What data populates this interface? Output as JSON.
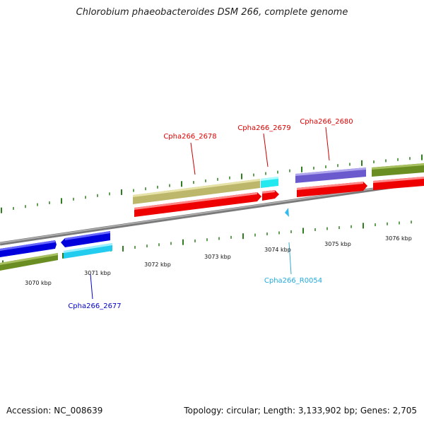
{
  "title": "Chlorobium phaeobacteroides DSM 266, complete genome",
  "genes": {
    "g2677": "Cpha266_2677",
    "g2678": "Cpha266_2678",
    "g2679": "Cpha266_2679",
    "g2680": "Cpha266_2680",
    "r0054": "Cpha266_R0054"
  },
  "kbp_ticks": {
    "t3070": "3070 kbp",
    "t3071": "3071 kbp",
    "t3072": "3072 kbp",
    "t3073": "3073 kbp",
    "t3074": "3074 kbp",
    "t3075": "3075 kbp",
    "t3076": "3076 kbp"
  },
  "footer": {
    "accession": "Accession: NC_008639",
    "summary": "Topology: circular; Length: 3,133,902 bp; Genes: 2,705"
  },
  "colors": {
    "red": "#ee0000",
    "blue": "#0000dd",
    "cyan": "#22ccee",
    "olive": "#6b8e23",
    "khaki": "#bdb76b",
    "slate": "#6a5acd",
    "tick": "#2e7d1e",
    "backbone": "#888888"
  }
}
